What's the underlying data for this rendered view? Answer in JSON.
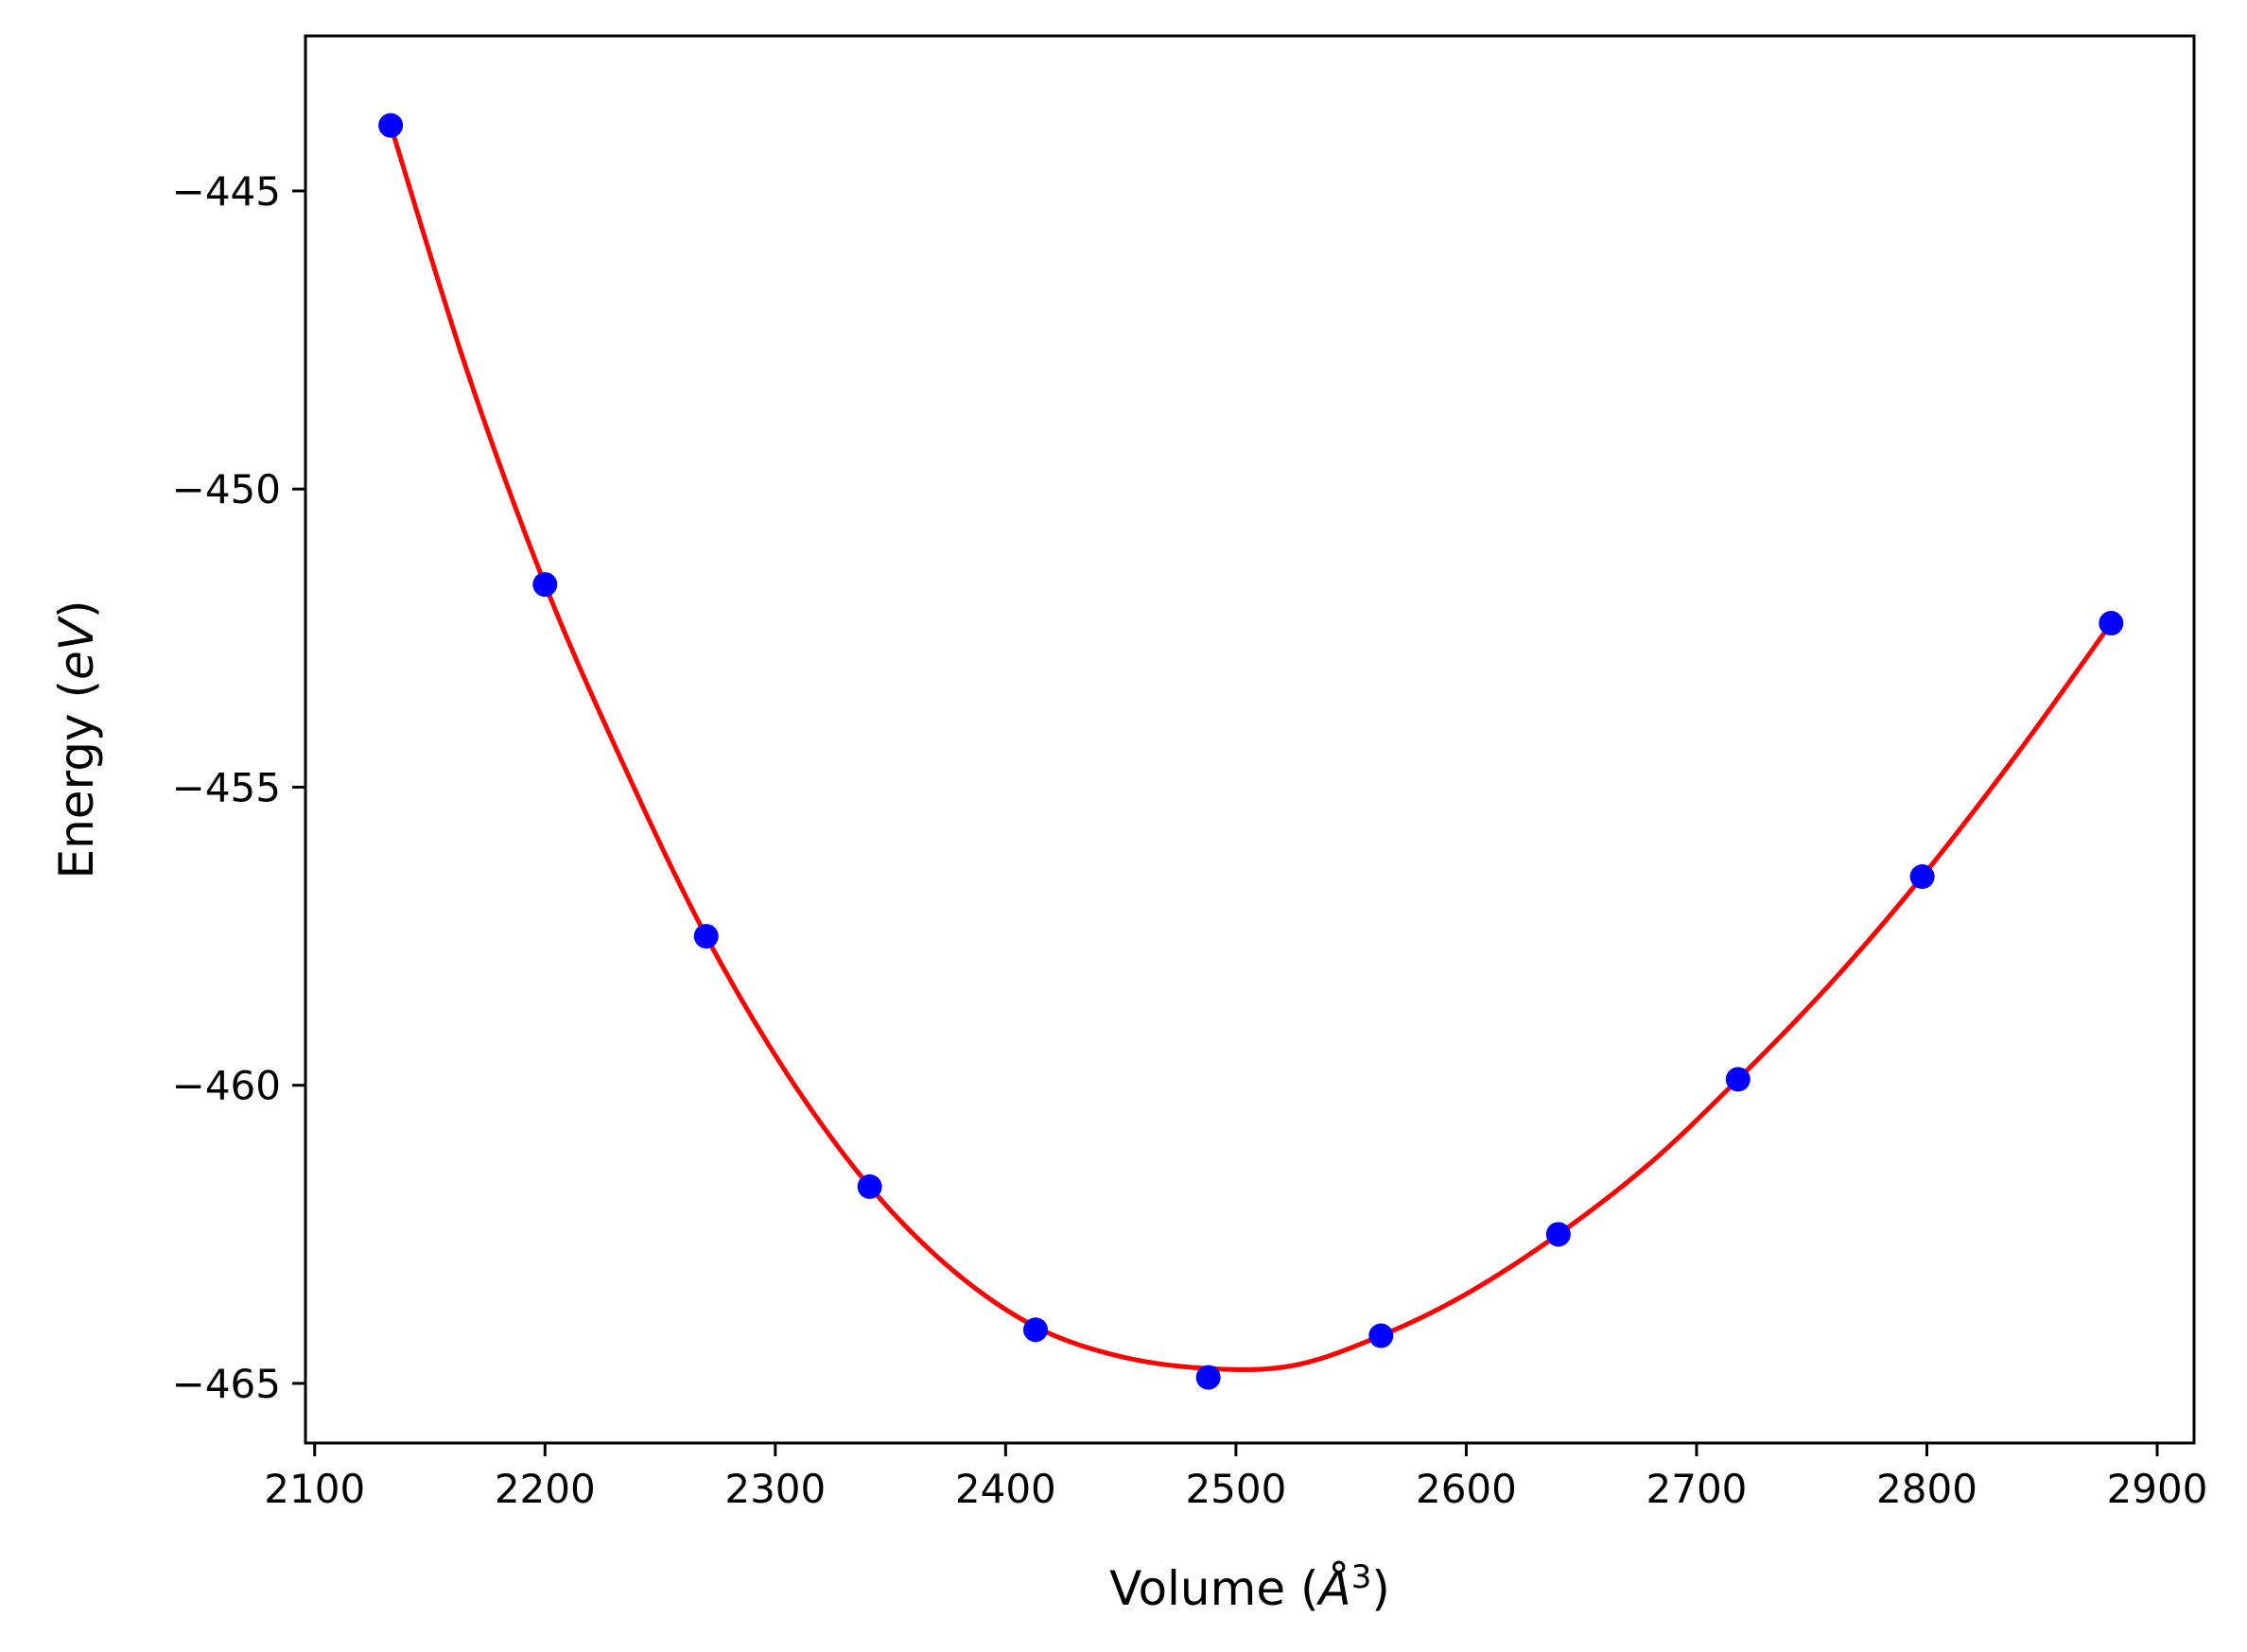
{
  "chart_data": {
    "type": "scatter",
    "xlabel": "Volume",
    "xlabel_unit_base": "Å",
    "xlabel_unit_exp": "3",
    "ylabel": "Energy",
    "ylabel_unit": "eV",
    "xlim": [
      2096,
      2916
    ],
    "ylim": [
      -466.0,
      -442.4
    ],
    "xticks": [
      2100,
      2200,
      2300,
      2400,
      2500,
      2600,
      2700,
      2800,
      2900
    ],
    "yticks": [
      -445,
      -450,
      -455,
      -460,
      -465
    ],
    "grid": false,
    "points": {
      "color": "#0000ff",
      "x": [
        2133,
        2200,
        2270,
        2341,
        2413,
        2488,
        2563,
        2640,
        2718,
        2798,
        2880
      ],
      "y": [
        -443.9,
        -451.6,
        -457.5,
        -461.7,
        -464.1,
        -464.9,
        -464.2,
        -462.5,
        -459.9,
        -456.5,
        -452.25
      ]
    },
    "fit_curve": {
      "color": "#ff0000",
      "x": [
        2133,
        2166,
        2200,
        2235,
        2270,
        2305,
        2341,
        2377,
        2413,
        2450,
        2488,
        2525,
        2563,
        2600,
        2640,
        2680,
        2718,
        2758,
        2798,
        2840,
        2880
      ],
      "y": [
        -443.9,
        -448.0,
        -451.6,
        -454.7,
        -457.5,
        -459.8,
        -461.7,
        -463.1,
        -464.05,
        -464.55,
        -464.75,
        -464.7,
        -464.2,
        -463.5,
        -462.5,
        -461.3,
        -459.9,
        -458.3,
        -456.5,
        -454.4,
        -452.25
      ]
    }
  }
}
